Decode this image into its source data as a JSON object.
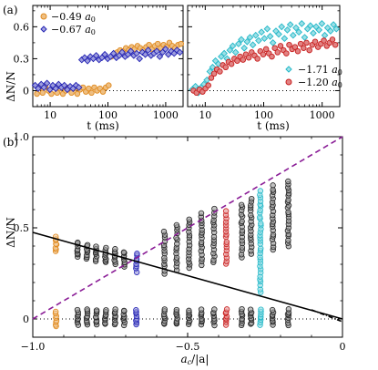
{
  "chart_data": [
    {
      "panel": "(a)",
      "type": "scatter",
      "xlabel": "t (ms)",
      "ylabel": "ΔN/N",
      "xscale": "log",
      "xlim": [
        5,
        2000
      ],
      "ylim": [
        -0.15,
        0.8
      ],
      "xticks": [
        10,
        100,
        1000
      ],
      "xtick_labels": [
        "10",
        "100",
        "1000"
      ],
      "yticks": [
        0,
        0.3,
        0.6
      ],
      "ytick_labels": [
        "0",
        "0.3",
        "0.6"
      ],
      "reference_line": {
        "y": 0,
        "style": "dotted"
      },
      "legend_position": "top-left",
      "series": [
        {
          "name": "−0.49 a0",
          "legend_value": "−0.49",
          "legend_unit": "a",
          "legend_sub": "0",
          "marker": "circle",
          "color": "#e08a1e",
          "x": [
            5.2,
            5.9,
            6.6,
            7.4,
            8.3,
            9.3,
            10.5,
            11.8,
            13.2,
            14.8,
            16.6,
            18.6,
            20.9,
            23.4,
            26.3,
            29.5,
            33,
            37,
            41.5,
            46.5,
            52,
            58,
            65,
            73,
            82,
            92,
            103,
            115,
            129,
            145,
            163,
            183,
            205,
            230,
            258,
            290,
            325,
            365,
            410,
            460,
            515,
            580,
            650,
            730,
            820,
            920,
            1030,
            1160,
            1300,
            1460,
            1640,
            1840
          ],
          "y": [
            0.02,
            -0.03,
            0.03,
            -0.02,
            0.04,
            0.0,
            -0.03,
            0.03,
            -0.02,
            0.02,
            -0.03,
            0.0,
            0.03,
            -0.02,
            0.02,
            -0.03,
            0.01,
            0.03,
            -0.01,
            0.02,
            -0.02,
            0.03,
            0.0,
            0.02,
            -0.01,
            0.03,
            0.05,
            0.32,
            0.34,
            0.36,
            0.38,
            0.37,
            0.4,
            0.38,
            0.41,
            0.39,
            0.42,
            0.4,
            0.38,
            0.41,
            0.43,
            0.39,
            0.42,
            0.44,
            0.4,
            0.43,
            0.41,
            0.45,
            0.42,
            0.4,
            0.43,
            0.44
          ]
        },
        {
          "name": "−0.67 a0",
          "legend_value": "−0.67",
          "legend_unit": "a",
          "legend_sub": "0",
          "marker": "diamond",
          "color": "#2323b4",
          "x": [
            5.5,
            6.2,
            7.0,
            7.8,
            8.8,
            9.9,
            11.1,
            12.5,
            14.0,
            15.7,
            17.6,
            19.8,
            22.2,
            24.9,
            28.0,
            31.4,
            35.2,
            39.5,
            44.3,
            49.7,
            55.8,
            62.6,
            70.2,
            78.8,
            88.4,
            99.2,
            111,
            125,
            140,
            157,
            176,
            198,
            222,
            249,
            280,
            314,
            352,
            395,
            443,
            497,
            558,
            626,
            702,
            788,
            884,
            992,
            1110,
            1250,
            1400,
            1570,
            1760
          ],
          "y": [
            0.05,
            0.02,
            0.06,
            0.03,
            0.07,
            0.01,
            0.05,
            0.02,
            0.06,
            0.03,
            0.05,
            0.01,
            0.04,
            0.02,
            0.05,
            0.03,
            0.29,
            0.31,
            0.28,
            0.32,
            0.3,
            0.33,
            0.29,
            0.31,
            0.34,
            0.3,
            0.32,
            0.35,
            0.31,
            0.33,
            0.36,
            0.32,
            0.34,
            0.37,
            0.33,
            0.35,
            0.3,
            0.36,
            0.34,
            0.38,
            0.33,
            0.35,
            0.37,
            0.32,
            0.36,
            0.39,
            0.34,
            0.37,
            0.35,
            0.38,
            0.36
          ]
        }
      ]
    },
    {
      "panel": "(a)",
      "type": "scatter",
      "xlabel": "t (ms)",
      "ylabel": "",
      "xscale": "log",
      "xlim": [
        5,
        2000
      ],
      "ylim": [
        -0.15,
        0.8
      ],
      "xticks": [
        10,
        100,
        1000
      ],
      "xtick_labels": [
        "10",
        "100",
        "1000"
      ],
      "yticks": [
        0,
        0.3,
        0.6
      ],
      "ytick_labels": [
        "",
        "",
        ""
      ],
      "reference_line": {
        "y": 0,
        "style": "dotted"
      },
      "legend_position": "bottom-right",
      "series": [
        {
          "name": "−1.71 a0",
          "legend_value": "−1.71",
          "legend_unit": "a",
          "legend_sub": "0",
          "marker": "diamond",
          "color": "#22b8c8",
          "x": [
            6.0,
            6.8,
            7.6,
            8.5,
            9.5,
            10.7,
            12.0,
            13.4,
            15.0,
            16.8,
            18.8,
            21.1,
            23.6,
            26.4,
            29.6,
            33.1,
            37.1,
            41.5,
            46.5,
            52.1,
            58.3,
            65.3,
            73.1,
            81.9,
            91.7,
            103,
            115,
            129,
            144,
            162,
            181,
            203,
            227,
            254,
            285,
            319,
            357,
            400,
            448,
            502,
            562,
            629,
            705,
            789,
            884,
            990,
            1110,
            1240,
            1390,
            1560,
            1750,
            1960
          ],
          "y": [
            0.01,
            0.04,
            -0.02,
            0.03,
            0.06,
            0.1,
            0.18,
            0.22,
            0.28,
            0.25,
            0.32,
            0.35,
            0.3,
            0.38,
            0.42,
            0.36,
            0.44,
            0.48,
            0.4,
            0.46,
            0.5,
            0.43,
            0.52,
            0.47,
            0.55,
            0.49,
            0.58,
            0.51,
            0.45,
            0.56,
            0.53,
            0.6,
            0.49,
            0.57,
            0.62,
            0.52,
            0.59,
            0.55,
            0.63,
            0.5,
            0.58,
            0.61,
            0.54,
            0.6,
            0.57,
            0.63,
            0.52,
            0.59,
            0.56,
            0.62,
            0.58,
            0.55
          ]
        },
        {
          "name": "−1.20 a0",
          "legend_value": "−1.20",
          "legend_unit": "a",
          "legend_sub": "0",
          "marker": "circle",
          "color": "#c81e1e",
          "x": [
            6.3,
            7.1,
            8.0,
            9.0,
            10.1,
            11.3,
            12.7,
            14.2,
            15.9,
            17.8,
            20.0,
            22.4,
            25.1,
            28.1,
            31.5,
            35.3,
            39.5,
            44.3,
            49.6,
            55.6,
            62.3,
            69.8,
            78.2,
            87.6,
            98.1,
            110,
            123,
            138,
            155,
            173,
            194,
            218,
            244,
            273,
            306,
            343,
            384,
            430,
            482,
            540,
            605,
            678,
            759,
            851,
            953,
            1070,
            1200,
            1340,
            1500,
            1680,
            1880
          ],
          "y": [
            0.0,
            -0.02,
            0.01,
            -0.01,
            0.02,
            0.05,
            0.12,
            0.16,
            0.2,
            0.18,
            0.24,
            0.22,
            0.27,
            0.25,
            0.3,
            0.28,
            0.32,
            0.29,
            0.34,
            0.31,
            0.36,
            0.33,
            0.3,
            0.37,
            0.34,
            0.39,
            0.35,
            0.32,
            0.4,
            0.36,
            0.42,
            0.38,
            0.35,
            0.43,
            0.39,
            0.41,
            0.37,
            0.44,
            0.4,
            0.45,
            0.38,
            0.43,
            0.46,
            0.41,
            0.44,
            0.47,
            0.42,
            0.45,
            0.48,
            0.43,
            0.46
          ]
        }
      ]
    },
    {
      "panel": "(b)",
      "type": "scatter",
      "xlabel": "ac/|a|",
      "xlabel_main": "a",
      "xlabel_sub": "c",
      "xlabel_rest": "/|a|",
      "ylabel": "ΔN/N",
      "xlim": [
        -1.0,
        0
      ],
      "ylim": [
        -0.1,
        1.0
      ],
      "xticks": [
        -1.0,
        -0.5,
        0
      ],
      "xtick_labels": [
        "−1.0",
        "−0.5",
        "0"
      ],
      "yticks": [
        0,
        0.5,
        1.0
      ],
      "ytick_labels": [
        "0",
        "0.5",
        "1.0"
      ],
      "reference_line": {
        "y": 0,
        "style": "dotted"
      },
      "lines": [
        {
          "style": "dashed",
          "color": "#8a1c96",
          "x": [
            -1.0,
            0
          ],
          "y": [
            0,
            1.0
          ]
        },
        {
          "style": "solid",
          "color": "#000000",
          "x": [
            -1.0,
            0
          ],
          "y": [
            0.475,
            0
          ]
        },
        {
          "style": "dashdot",
          "color": "#000000",
          "x": [
            -0.1,
            0
          ],
          "y": [
            0.05,
            -0.015
          ]
        }
      ],
      "columns": [
        {
          "x": -0.925,
          "color": "#e08a1e",
          "lower": [
            -0.04,
            0.04
          ],
          "upper": [
            0.37,
            0.45
          ]
        },
        {
          "x": -0.855,
          "color": "#000000",
          "lower": [
            -0.03,
            0.05
          ],
          "upper": [
            0.34,
            0.42
          ]
        },
        {
          "x": -0.825,
          "color": "#000000",
          "lower": [
            -0.03,
            0.05
          ],
          "upper": [
            0.33,
            0.41
          ]
        },
        {
          "x": -0.795,
          "color": "#000000",
          "lower": [
            -0.03,
            0.05
          ],
          "upper": [
            0.32,
            0.4
          ]
        },
        {
          "x": -0.765,
          "color": "#000000",
          "lower": [
            -0.03,
            0.05
          ],
          "upper": [
            0.31,
            0.39
          ]
        },
        {
          "x": -0.735,
          "color": "#000000",
          "lower": [
            -0.03,
            0.05
          ],
          "upper": [
            0.3,
            0.38
          ]
        },
        {
          "x": -0.705,
          "color": "#000000",
          "lower": [
            -0.03,
            0.05
          ],
          "upper": [
            0.29,
            0.37
          ]
        },
        {
          "x": -0.665,
          "color": "#2323b4",
          "lower": [
            -0.03,
            0.05
          ],
          "upper": [
            0.26,
            0.36
          ]
        },
        {
          "x": -0.575,
          "color": "#000000",
          "lower": [
            -0.03,
            0.05
          ],
          "upper": [
            0.25,
            0.48
          ]
        },
        {
          "x": -0.535,
          "color": "#000000",
          "lower": [
            -0.03,
            0.05
          ],
          "upper": [
            0.27,
            0.52
          ]
        },
        {
          "x": -0.495,
          "color": "#000000",
          "lower": [
            -0.03,
            0.05
          ],
          "upper": [
            0.28,
            0.55
          ]
        },
        {
          "x": -0.455,
          "color": "#000000",
          "lower": [
            -0.03,
            0.05
          ],
          "upper": [
            0.3,
            0.58
          ]
        },
        {
          "x": -0.415,
          "color": "#000000",
          "lower": [
            -0.03,
            0.05
          ],
          "upper": [
            0.31,
            0.6
          ]
        },
        {
          "x": -0.375,
          "color": "#c81e1e",
          "lower": [
            -0.03,
            0.05
          ],
          "upper": [
            0.3,
            0.59
          ]
        },
        {
          "x": -0.325,
          "color": "#000000",
          "lower": [
            -0.03,
            0.05
          ],
          "upper": [
            0.34,
            0.63
          ]
        },
        {
          "x": -0.295,
          "color": "#000000",
          "lower": [
            -0.03,
            0.05
          ],
          "upper": [
            0.36,
            0.66
          ]
        },
        {
          "x": -0.265,
          "color": "#22b8c8",
          "lower": [
            -0.03,
            0.05
          ],
          "upper": [
            0.15,
            0.7
          ]
        },
        {
          "x": -0.225,
          "color": "#000000",
          "lower": [
            -0.03,
            0.05
          ],
          "upper": [
            0.38,
            0.73
          ]
        },
        {
          "x": -0.175,
          "color": "#000000",
          "lower": [
            -0.03,
            0.05
          ],
          "upper": [
            0.4,
            0.76
          ]
        }
      ]
    }
  ]
}
